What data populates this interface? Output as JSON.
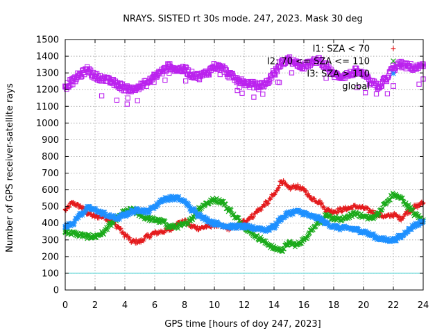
{
  "chart_data": {
    "type": "scatter",
    "title": "NRAYS. SISTED rt 30s mode. 247, 2023. Mask 30 deg",
    "xlabel": "GPS time [hours of doy 247, 2023]",
    "ylabel": "Number of GPS receiver-satellite rays",
    "xlim": [
      0,
      24
    ],
    "ylim": [
      0,
      1500
    ],
    "xticks": [
      0,
      2,
      4,
      6,
      8,
      10,
      12,
      14,
      16,
      18,
      20,
      22,
      24
    ],
    "yticks": [
      0,
      100,
      200,
      300,
      400,
      500,
      600,
      700,
      800,
      900,
      1000,
      1100,
      1200,
      1300,
      1400,
      1500
    ],
    "grid": true,
    "legend_position": "top-right",
    "reference_line": {
      "y": 100,
      "color": "#33cccc"
    },
    "series": [
      {
        "name": "I1: SZA < 70",
        "color": "#e41a1c",
        "marker": "plus",
        "x": [
          0,
          0.5,
          1,
          1.5,
          2,
          2.5,
          3,
          3.5,
          4,
          4.5,
          5,
          5.5,
          6,
          6.5,
          7,
          7.5,
          8,
          8.5,
          9,
          9.5,
          10,
          10.5,
          11,
          11.5,
          12,
          12.5,
          13,
          13.5,
          14,
          14.5,
          15,
          15.5,
          16,
          16.5,
          17,
          17.5,
          18,
          18.5,
          19,
          19.5,
          20,
          20.5,
          21,
          21.5,
          22,
          22.5,
          23,
          23.5,
          24
        ],
        "values": [
          480,
          520,
          500,
          460,
          440,
          440,
          420,
          380,
          330,
          290,
          290,
          320,
          340,
          350,
          360,
          400,
          410,
          380,
          370,
          380,
          390,
          380,
          370,
          380,
          410,
          440,
          480,
          520,
          570,
          650,
          610,
          620,
          600,
          550,
          530,
          480,
          470,
          480,
          490,
          500,
          490,
          470,
          450,
          440,
          450,
          430,
          470,
          500,
          520
        ]
      },
      {
        "name": "I2: 70 <= SZA <= 110",
        "color": "#1aaa1a",
        "marker": "x",
        "x": [
          0,
          0.5,
          1,
          1.5,
          2,
          2.5,
          3,
          3.5,
          4,
          4.5,
          5,
          5.5,
          6,
          6.5,
          7,
          7.5,
          8,
          8.5,
          9,
          9.5,
          10,
          10.5,
          11,
          11.5,
          12,
          12.5,
          13,
          13.5,
          14,
          14.5,
          15,
          15.5,
          16,
          16.5,
          17,
          17.5,
          18,
          18.5,
          19,
          19.5,
          20,
          20.5,
          21,
          21.5,
          22,
          22.5,
          23,
          23.5,
          24
        ],
        "values": [
          350,
          340,
          330,
          320,
          320,
          340,
          390,
          430,
          470,
          480,
          450,
          430,
          420,
          410,
          380,
          380,
          390,
          430,
          490,
          520,
          540,
          530,
          480,
          430,
          380,
          340,
          310,
          280,
          250,
          240,
          280,
          270,
          300,
          360,
          410,
          440,
          430,
          420,
          440,
          460,
          440,
          430,
          460,
          520,
          570,
          550,
          500,
          450,
          420
        ]
      },
      {
        "name": "I3: SZA > 110",
        "color": "#1e90ff",
        "marker": "star",
        "x": [
          0,
          0.5,
          1,
          1.5,
          2,
          2.5,
          3,
          3.5,
          4,
          4.5,
          5,
          5.5,
          6,
          6.5,
          7,
          7.5,
          8,
          8.5,
          9,
          9.5,
          10,
          10.5,
          11,
          11.5,
          12,
          12.5,
          13,
          13.5,
          14,
          14.5,
          15,
          15.5,
          16,
          16.5,
          17,
          17.5,
          18,
          18.5,
          19,
          19.5,
          20,
          20.5,
          21,
          21.5,
          22,
          22.5,
          23,
          23.5,
          24
        ],
        "values": [
          380,
          400,
          450,
          490,
          480,
          460,
          440,
          430,
          450,
          470,
          480,
          470,
          500,
          540,
          550,
          550,
          530,
          480,
          450,
          420,
          400,
          390,
          380,
          380,
          380,
          370,
          370,
          360,
          380,
          430,
          460,
          470,
          460,
          440,
          430,
          400,
          380,
          370,
          370,
          360,
          350,
          330,
          310,
          300,
          300,
          320,
          360,
          390,
          410
        ]
      },
      {
        "name": "global",
        "color": "#bb22ee",
        "marker": "square",
        "x": [
          0,
          0.5,
          1,
          1.5,
          2,
          2.5,
          3,
          3.5,
          4,
          4.5,
          5,
          5.5,
          6,
          6.5,
          7,
          7.5,
          8,
          8.5,
          9,
          9.5,
          10,
          10.5,
          11,
          11.5,
          12,
          12.5,
          13,
          13.5,
          14,
          14.5,
          15,
          15.5,
          16,
          16.5,
          17,
          17.5,
          18,
          18.5,
          19,
          19.5,
          20,
          20.5,
          21,
          21.5,
          22,
          22.5,
          23,
          23.5,
          24
        ],
        "values": [
          1220,
          1250,
          1290,
          1320,
          1280,
          1270,
          1250,
          1230,
          1210,
          1200,
          1220,
          1240,
          1280,
          1310,
          1340,
          1320,
          1320,
          1290,
          1280,
          1300,
          1340,
          1330,
          1290,
          1260,
          1240,
          1230,
          1220,
          1240,
          1300,
          1360,
          1380,
          1360,
          1340,
          1360,
          1380,
          1340,
          1290,
          1280,
          1290,
          1310,
          1290,
          1240,
          1220,
          1260,
          1330,
          1350,
          1340,
          1330,
          1340
        ]
      }
    ]
  }
}
